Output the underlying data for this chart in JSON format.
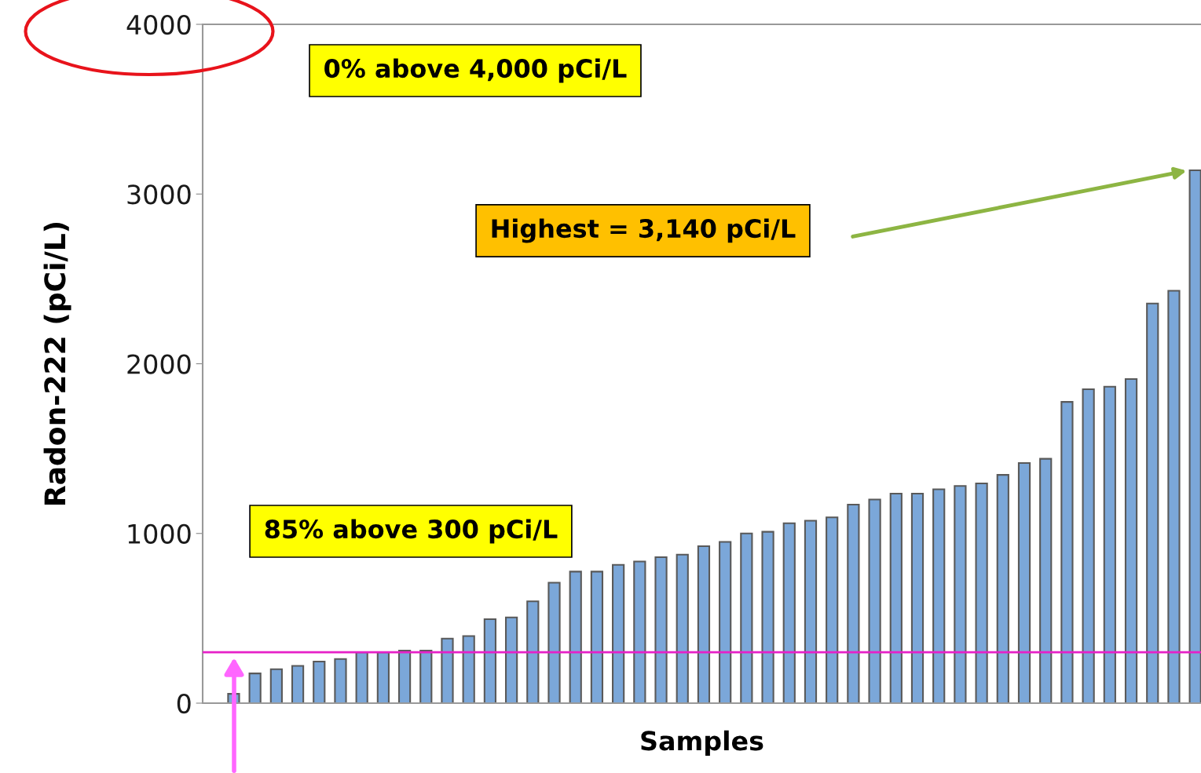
{
  "chart_data": {
    "type": "bar",
    "xlabel": "Samples",
    "ylabel": "Radon-222 (pCi/L)",
    "categories": [
      null,
      null,
      null,
      null,
      null,
      null,
      null,
      null,
      null,
      null,
      null,
      null,
      null,
      null,
      null,
      null,
      null,
      null,
      null,
      null,
      null,
      null,
      null,
      null,
      null,
      null,
      null,
      null,
      null,
      null,
      null,
      null,
      null,
      null,
      null,
      null,
      null,
      null,
      null,
      null,
      null,
      null,
      null,
      null,
      null,
      null
    ],
    "values": [
      55,
      175,
      200,
      220,
      245,
      260,
      300,
      300,
      310,
      310,
      380,
      395,
      495,
      505,
      600,
      710,
      775,
      775,
      815,
      835,
      860,
      875,
      925,
      950,
      1000,
      1010,
      1060,
      1075,
      1095,
      1170,
      1200,
      1235,
      1235,
      1260,
      1280,
      1295,
      1345,
      1415,
      1440,
      1775,
      1850,
      1865,
      1910,
      2355,
      2430,
      3140
    ],
    "color": "#7ba7d9",
    "ylim": [
      0,
      4000
    ],
    "yticks": [
      0,
      1000,
      2000,
      3000,
      4000
    ],
    "tick_labels": "y",
    "grid": false,
    "ref_lines": [
      {
        "axis": "y",
        "value": 300,
        "color": "#e620c8"
      }
    ],
    "annotations": [
      "0% above 4,000 pCi/L",
      "85% above 300 pCi/L",
      "Highest = 3,140 pCi/L"
    ]
  }
}
